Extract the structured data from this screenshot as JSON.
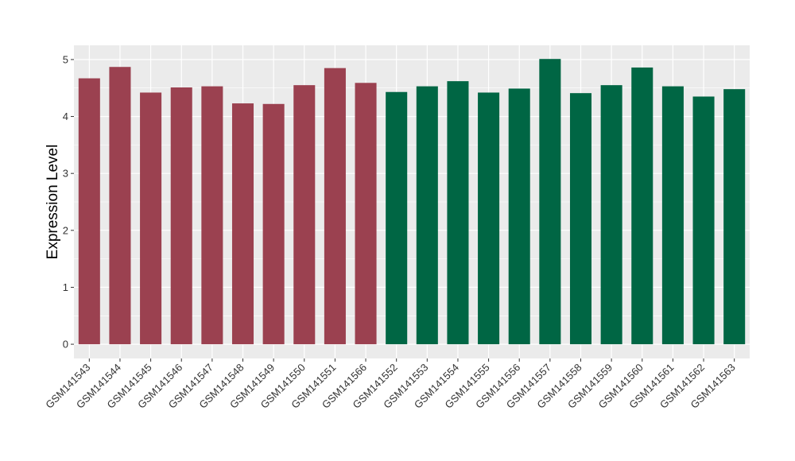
{
  "chart_data": {
    "type": "bar",
    "title": "",
    "xlabel": "",
    "ylabel": "Expression Level",
    "ylim": [
      -0.25,
      5.25
    ],
    "yticks": [
      0,
      1,
      2,
      3,
      4,
      5
    ],
    "grid": true,
    "legend": "none",
    "categories": [
      "GSM141543",
      "GSM141544",
      "GSM141545",
      "GSM141546",
      "GSM141547",
      "GSM141548",
      "GSM141549",
      "GSM141550",
      "GSM141551",
      "GSM141566",
      "GSM141552",
      "GSM141553",
      "GSM141554",
      "GSM141555",
      "GSM141556",
      "GSM141557",
      "GSM141558",
      "GSM141559",
      "GSM141560",
      "GSM141561",
      "GSM141562",
      "GSM141563"
    ],
    "values": [
      4.67,
      4.87,
      4.42,
      4.51,
      4.53,
      4.23,
      4.22,
      4.55,
      4.85,
      4.59,
      4.43,
      4.53,
      4.62,
      4.42,
      4.49,
      5.01,
      4.41,
      4.55,
      4.86,
      4.53,
      4.35,
      4.48
    ],
    "groups": [
      0,
      0,
      0,
      0,
      0,
      0,
      0,
      0,
      0,
      0,
      1,
      1,
      1,
      1,
      1,
      1,
      1,
      1,
      1,
      1,
      1,
      1
    ],
    "group_colors": [
      "#9B4150",
      "#006644"
    ],
    "panel_background": "#EBEBEB",
    "grid_color": "#FFFFFF"
  }
}
